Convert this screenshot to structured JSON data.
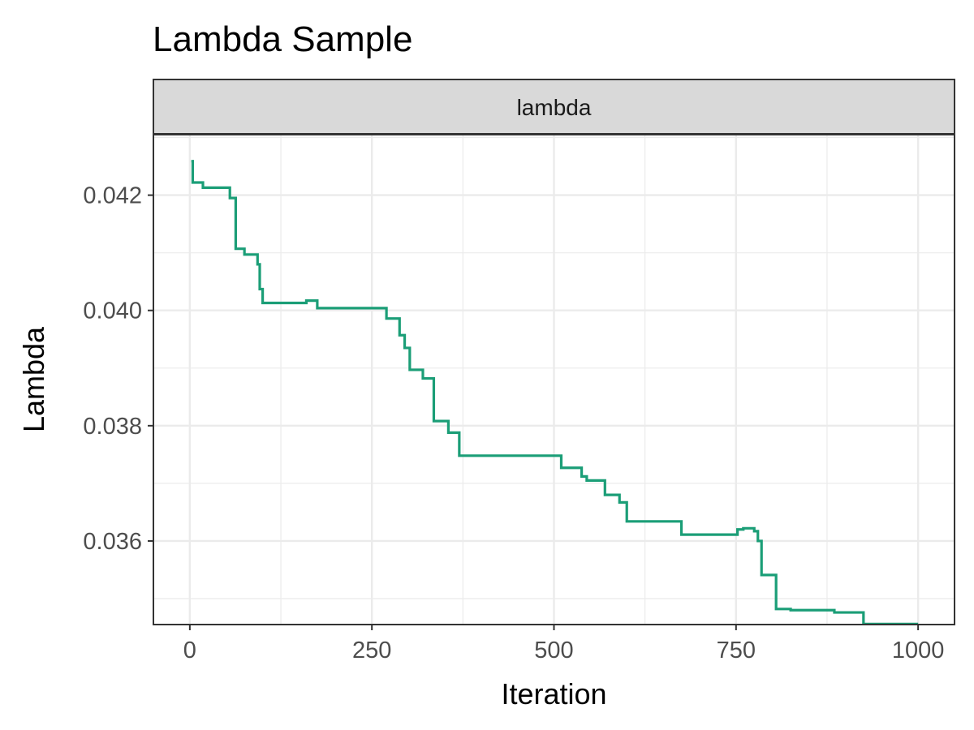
{
  "chart_data": {
    "type": "line",
    "title": "Lambda Sample",
    "facet_label": "lambda",
    "xlabel": "Iteration",
    "ylabel": "Lambda",
    "xlim": [
      -50,
      1050
    ],
    "ylim": [
      0.03455,
      0.04305
    ],
    "x_ticks": [
      0,
      250,
      500,
      750,
      1000
    ],
    "x_tick_labels": [
      "0",
      "250",
      "500",
      "750",
      "1000"
    ],
    "y_ticks": [
      0.036,
      0.038,
      0.04,
      0.042
    ],
    "y_tick_labels": [
      "0.036",
      "0.038",
      "0.040",
      "0.042"
    ],
    "grid": true,
    "line_color": "#1b9e77",
    "series": [
      {
        "x": [
          2,
          4,
          4,
          18,
          18,
          55,
          55,
          63,
          63,
          75,
          75,
          93,
          93,
          96,
          96,
          100,
          100,
          108,
          108,
          160,
          160,
          175,
          175,
          270,
          270,
          288,
          288,
          295,
          295,
          302,
          302,
          320,
          320,
          335,
          335,
          355,
          355,
          370,
          370,
          510,
          510,
          538,
          538,
          545,
          545,
          570,
          570,
          590,
          590,
          600,
          600,
          675,
          675,
          752,
          752,
          760,
          760,
          775,
          775,
          780,
          780,
          785,
          785,
          805,
          805,
          825,
          825,
          885,
          885,
          925,
          925,
          1000
        ],
        "y": [
          0.04259,
          0.04259,
          0.04222,
          0.04222,
          0.04213,
          0.04213,
          0.04195,
          0.04195,
          0.04107,
          0.04107,
          0.04097,
          0.04097,
          0.0408,
          0.0408,
          0.04037,
          0.04037,
          0.04013,
          0.04013,
          0.04013,
          0.04013,
          0.04017,
          0.04017,
          0.04004,
          0.04004,
          0.03986,
          0.03986,
          0.03957,
          0.03957,
          0.03935,
          0.03935,
          0.03897,
          0.03897,
          0.03882,
          0.03882,
          0.03808,
          0.03808,
          0.03788,
          0.03788,
          0.03748,
          0.03748,
          0.03727,
          0.03727,
          0.03712,
          0.03712,
          0.03705,
          0.03705,
          0.0368,
          0.0368,
          0.03667,
          0.03667,
          0.03634,
          0.03634,
          0.03611,
          0.03611,
          0.0362,
          0.0362,
          0.03622,
          0.03622,
          0.03617,
          0.03617,
          0.036,
          0.036,
          0.03541,
          0.03541,
          0.03482,
          0.03482,
          0.0348,
          0.0348,
          0.03476,
          0.03476,
          0.03456,
          0.03456
        ]
      }
    ]
  }
}
